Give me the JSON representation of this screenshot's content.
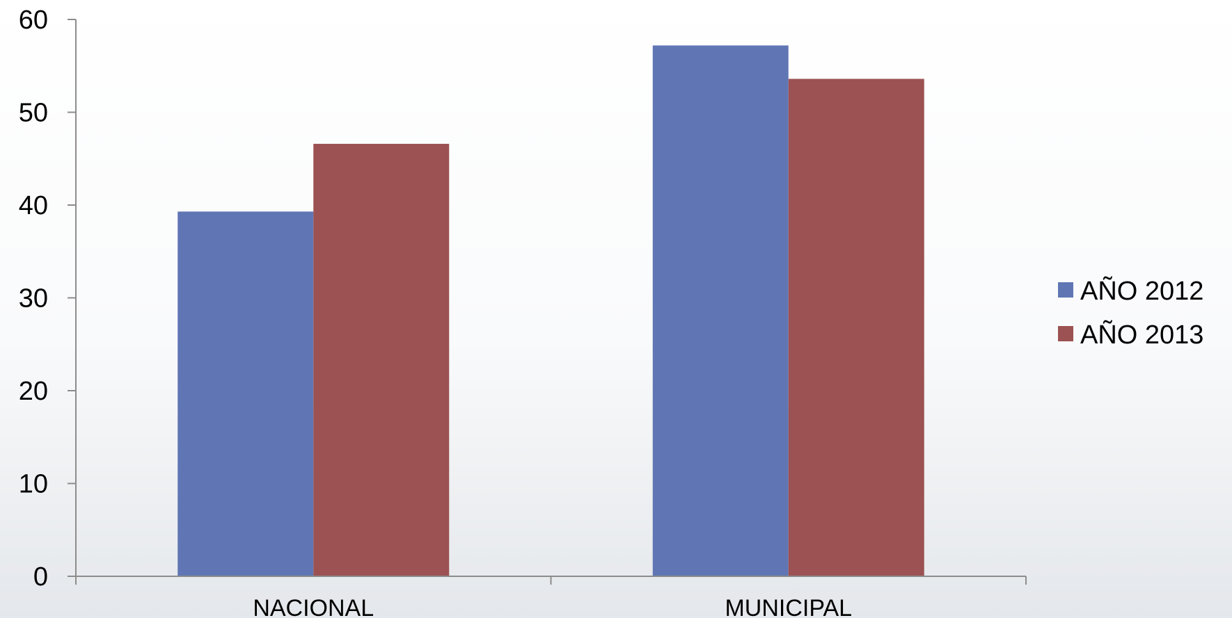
{
  "chart_data": {
    "type": "bar",
    "categories": [
      "NACIONAL",
      "MUNICIPAL"
    ],
    "series": [
      {
        "name": "AÑO 2012",
        "values": [
          39.3,
          57.2
        ],
        "color": "#6076B4"
      },
      {
        "name": "AÑO 2013",
        "values": [
          46.6,
          53.6
        ],
        "color": "#9C5252"
      }
    ],
    "yticks": [
      "0",
      "10",
      "20",
      "30",
      "40",
      "50",
      "60"
    ],
    "ylim": [
      0,
      60
    ],
    "grid": false,
    "legend_position": "right",
    "axis_color": "#8C8C8C"
  }
}
